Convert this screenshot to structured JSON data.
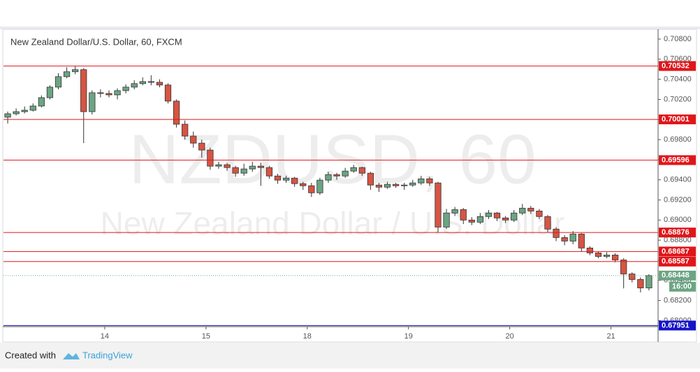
{
  "chart_data": {
    "type": "candlestick",
    "title": "New Zealand Dollar/U.S. Dollar, 60, FXCM",
    "watermark": "NZDUSD, 60",
    "watermark_subtitle": "New Zealand Dollar / U.S. Dollar",
    "up_color": "#6ba583",
    "down_color": "#d75442",
    "x": [
      1,
      3,
      5,
      7,
      9,
      11,
      13,
      15,
      17,
      19,
      21,
      23,
      25,
      27,
      29,
      31,
      33,
      35,
      37,
      39,
      41,
      43,
      45,
      47,
      49,
      51,
      53,
      55,
      57,
      59,
      61,
      63,
      65,
      67,
      69,
      71,
      73,
      75,
      77,
      79,
      81,
      83,
      85,
      87,
      89,
      91,
      93,
      95,
      97,
      99,
      101,
      103,
      105,
      107,
      109,
      111,
      113,
      115,
      117,
      119,
      121,
      123,
      125,
      127,
      129,
      131,
      133,
      135,
      137,
      139,
      141,
      143,
      145,
      147,
      149,
      151,
      153
    ],
    "open": [
      0.70023,
      0.70057,
      0.70078,
      0.70092,
      0.70134,
      0.70217,
      0.70322,
      0.70426,
      0.70475,
      0.70496,
      0.70078,
      0.70266,
      0.70259,
      0.70245,
      0.70287,
      0.70322,
      0.70357,
      0.70377,
      0.7037,
      0.70343,
      0.70183,
      0.69953,
      0.69835,
      0.69765,
      0.69696,
      0.69536,
      0.6955,
      0.69522,
      0.69466,
      0.69508,
      0.69536,
      0.69522,
      0.69438,
      0.69397,
      0.69417,
      0.69362,
      0.69341,
      0.69271,
      0.69397,
      0.69452,
      0.69438,
      0.69487,
      0.69522,
      0.69466,
      0.69348,
      0.69327,
      0.69355,
      0.69341,
      0.69348,
      0.69369,
      0.6941,
      0.69369,
      0.6893,
      0.6907,
      0.69104,
      0.69,
      0.68979,
      0.69035,
      0.6907,
      0.69021,
      0.69,
      0.6907,
      0.69118,
      0.6909,
      0.69035,
      0.6891,
      0.68826,
      0.68791,
      0.68861,
      0.68722,
      0.68673,
      0.68638,
      0.68652,
      0.68603,
      0.68464,
      0.68409,
      0.68325
    ],
    "high": [
      0.7008,
      0.7011,
      0.7013,
      0.7016,
      0.7024,
      0.7034,
      0.7046,
      0.7052,
      0.7053,
      0.7051,
      0.7029,
      0.703,
      0.7029,
      0.7031,
      0.7035,
      0.7039,
      0.7042,
      0.7044,
      0.704,
      0.7036,
      0.702,
      0.6999,
      0.6988,
      0.698,
      0.6972,
      0.6958,
      0.6957,
      0.6954,
      0.6956,
      0.6958,
      0.6957,
      0.6954,
      0.6946,
      0.6944,
      0.6943,
      0.6938,
      0.6937,
      0.6942,
      0.6948,
      0.6947,
      0.6952,
      0.6955,
      0.6953,
      0.6948,
      0.6937,
      0.6938,
      0.6937,
      0.6937,
      0.694,
      0.6944,
      0.6943,
      0.6938,
      0.6911,
      0.6913,
      0.6912,
      0.6903,
      0.6907,
      0.691,
      0.6908,
      0.6904,
      0.691,
      0.6916,
      0.6914,
      0.6911,
      0.6905,
      0.6893,
      0.6885,
      0.6889,
      0.6887,
      0.6874,
      0.6869,
      0.6868,
      0.6867,
      0.6862,
      0.6848,
      0.6843,
      0.6846
    ],
    "low": [
      0.6996,
      0.7004,
      0.7006,
      0.7008,
      0.7012,
      0.702,
      0.703,
      0.7041,
      0.7045,
      0.69765,
      0.7005,
      0.7022,
      0.7022,
      0.702,
      0.7026,
      0.703,
      0.7034,
      0.7034,
      0.7032,
      0.7016,
      0.6992,
      0.698,
      0.6972,
      0.6962,
      0.695,
      0.6951,
      0.6949,
      0.6943,
      0.6944,
      0.6948,
      0.6934,
      0.6941,
      0.6936,
      0.6937,
      0.6933,
      0.693,
      0.6923,
      0.6925,
      0.6937,
      0.694,
      0.6942,
      0.6947,
      0.6944,
      0.693,
      0.6928,
      0.6931,
      0.6932,
      0.693,
      0.6933,
      0.6935,
      0.6934,
      0.6888,
      0.6891,
      0.6904,
      0.6896,
      0.6895,
      0.6896,
      0.6901,
      0.6899,
      0.6897,
      0.6898,
      0.6905,
      0.6906,
      0.6901,
      0.6888,
      0.6879,
      0.6875,
      0.6876,
      0.6869,
      0.6865,
      0.6862,
      0.6862,
      0.6858,
      0.6832,
      0.6838,
      0.6828,
      0.683
    ],
    "close": [
      0.70057,
      0.70078,
      0.70092,
      0.70134,
      0.70217,
      0.70322,
      0.70426,
      0.70475,
      0.70496,
      0.70078,
      0.70266,
      0.70259,
      0.70245,
      0.70287,
      0.70322,
      0.70357,
      0.70377,
      0.7037,
      0.70343,
      0.70183,
      0.69953,
      0.69835,
      0.69765,
      0.69696,
      0.69536,
      0.6955,
      0.69522,
      0.69466,
      0.69508,
      0.69536,
      0.69522,
      0.69438,
      0.69397,
      0.69417,
      0.69362,
      0.69341,
      0.69271,
      0.69397,
      0.69452,
      0.69438,
      0.69487,
      0.69522,
      0.69466,
      0.69348,
      0.69327,
      0.69355,
      0.69341,
      0.69348,
      0.69369,
      0.6941,
      0.69369,
      0.6893,
      0.6907,
      0.69104,
      0.69,
      0.68979,
      0.69035,
      0.6907,
      0.69021,
      0.69,
      0.6907,
      0.69118,
      0.6909,
      0.69035,
      0.6891,
      0.68826,
      0.68791,
      0.68861,
      0.68722,
      0.68673,
      0.68638,
      0.68652,
      0.68603,
      0.68464,
      0.68409,
      0.68325,
      0.68448
    ],
    "xlim": [
      0,
      155
    ],
    "xticks": [
      {
        "value": 24,
        "label": "14"
      },
      {
        "value": 48,
        "label": "15"
      },
      {
        "value": 72,
        "label": "18"
      },
      {
        "value": 96,
        "label": "19"
      },
      {
        "value": 120,
        "label": "20"
      },
      {
        "value": 144,
        "label": "21"
      }
    ],
    "ylim": [
      0.6794,
      0.7089
    ],
    "yticks": [
      {
        "value": 0.68,
        "label": "0.68000"
      },
      {
        "value": 0.682,
        "label": "0.68200"
      },
      {
        "value": 0.684,
        "label": "0.68400"
      },
      {
        "value": 0.686,
        "label": "0.68600"
      },
      {
        "value": 0.688,
        "label": "0.68800"
      },
      {
        "value": 0.69,
        "label": "0.69000"
      },
      {
        "value": 0.692,
        "label": "0.69200"
      },
      {
        "value": 0.694,
        "label": "0.69400"
      },
      {
        "value": 0.696,
        "label": "0.69600"
      },
      {
        "value": 0.698,
        "label": "0.69800"
      },
      {
        "value": 0.7,
        "label": "0.70000"
      },
      {
        "value": 0.702,
        "label": "0.70200"
      },
      {
        "value": 0.704,
        "label": "0.70400"
      },
      {
        "value": 0.706,
        "label": "0.70600"
      },
      {
        "value": 0.708,
        "label": "0.70800"
      }
    ],
    "levels": [
      {
        "value": 0.70532,
        "color": "#e0161a"
      },
      {
        "value": 0.70001,
        "color": "#e0161a"
      },
      {
        "value": 0.69596,
        "color": "#e0161a"
      },
      {
        "value": 0.68876,
        "color": "#e0161a"
      },
      {
        "value": 0.68687,
        "color": "#e0161a"
      },
      {
        "value": 0.68587,
        "color": "#e0161a"
      },
      {
        "value": 0.67951,
        "color": "#1414c8"
      }
    ],
    "last_price": {
      "value": 0.68448,
      "time": "16:00",
      "color": "#6ba583"
    }
  },
  "footer": {
    "created_with": "Created with",
    "brand": "TradingView"
  }
}
